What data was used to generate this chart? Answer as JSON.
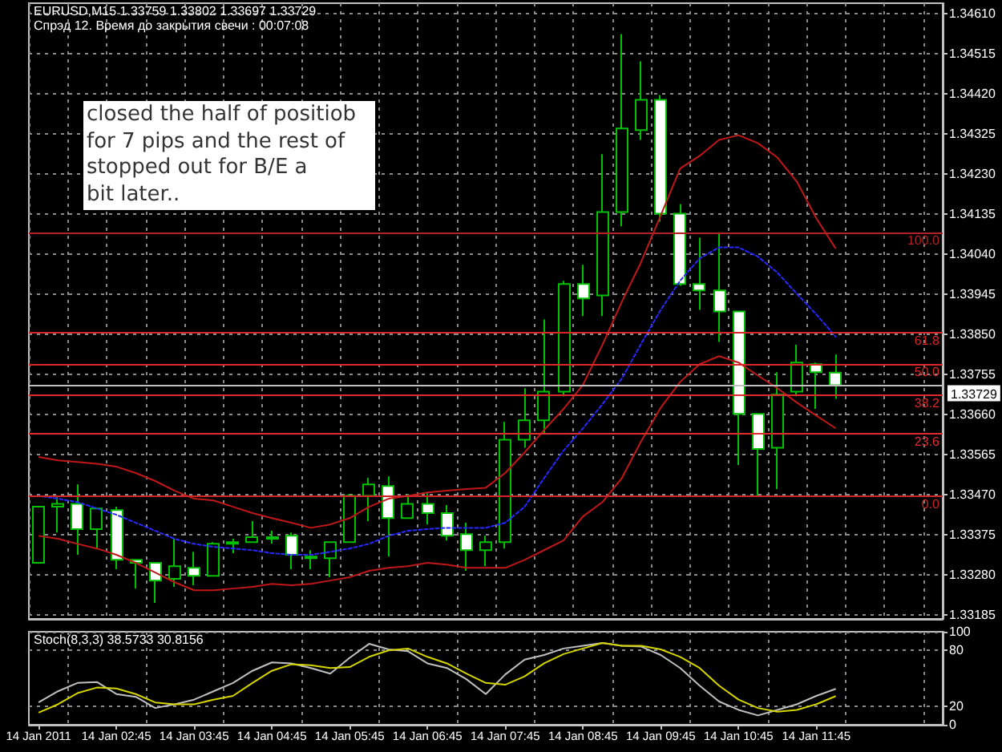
{
  "chart_data": [
    {
      "type": "candlestick",
      "title": "EURUSD,M15 1.33759 1.33802 1.33697 1.33729",
      "subtitle": "Спрэд 12. Время до закрытия свечи : 00:07:08",
      "categories": [
        null,
        null,
        null,
        null,
        null,
        null,
        null,
        null,
        null,
        null,
        null,
        null,
        null,
        null,
        null,
        null,
        null,
        null,
        null,
        null,
        null,
        null,
        null,
        null,
        null,
        null,
        null,
        null,
        null,
        null,
        null,
        null,
        null,
        null,
        null,
        null,
        null,
        null,
        null,
        null,
        null,
        null
      ],
      "ohlc": [
        [
          1.33308,
          1.33441,
          1.33308,
          1.33441
        ],
        [
          1.33441,
          1.33467,
          1.3338,
          1.33448
        ],
        [
          1.33448,
          1.33494,
          1.33327,
          1.33388
        ],
        [
          1.33388,
          1.33437,
          1.33342,
          1.33437
        ],
        [
          1.33433,
          1.33441,
          1.33293,
          1.33315
        ],
        [
          1.33315,
          1.33315,
          1.33247,
          1.33308
        ],
        [
          1.33308,
          1.33308,
          1.33213,
          1.33266
        ],
        [
          1.3327,
          1.33365,
          1.33251,
          1.333
        ],
        [
          1.33296,
          1.33334,
          1.33255,
          1.33277
        ],
        [
          1.33277,
          1.33357,
          1.33277,
          1.33353
        ],
        [
          1.33353,
          1.33365,
          1.33331,
          1.33357
        ],
        [
          1.33357,
          1.33407,
          1.33357,
          1.33369
        ],
        [
          1.33369,
          1.33384,
          1.33353,
          1.33365
        ],
        [
          1.33372,
          1.3338,
          1.33293,
          1.33327
        ],
        [
          1.33323,
          1.33338,
          1.33293,
          1.33319
        ],
        [
          1.33319,
          1.33357,
          1.33274,
          1.33357
        ],
        [
          1.33357,
          1.33471,
          1.33357,
          1.33467
        ],
        [
          1.33467,
          1.33509,
          1.33407,
          1.33494
        ],
        [
          1.3349,
          1.33513,
          1.33323,
          1.33414
        ],
        [
          1.33414,
          1.33471,
          1.33414,
          1.33448
        ],
        [
          1.33448,
          1.33475,
          1.33399,
          1.33426
        ],
        [
          1.33426,
          1.33445,
          1.33361,
          1.33372
        ],
        [
          1.33376,
          1.33403,
          1.33289,
          1.33338
        ],
        [
          1.33338,
          1.33372,
          1.333,
          1.33357
        ],
        [
          1.33357,
          1.33642,
          1.33342,
          1.336
        ],
        [
          1.336,
          1.33722,
          1.33581,
          1.33646
        ],
        [
          1.33646,
          1.33885,
          1.33616,
          1.33714
        ],
        [
          1.33714,
          1.33977,
          1.33703,
          1.33969
        ],
        [
          1.33969,
          1.34015,
          1.33893,
          1.33935
        ],
        [
          1.33942,
          1.34277,
          1.33893,
          1.3414
        ],
        [
          1.3414,
          1.34562,
          1.34106,
          1.34338
        ],
        [
          1.34334,
          1.34497,
          1.34311,
          1.34406
        ],
        [
          1.34406,
          1.34417,
          1.34117,
          1.34136
        ],
        [
          1.34136,
          1.34159,
          1.33965,
          1.33969
        ],
        [
          1.33969,
          1.34079,
          1.33908,
          1.33954
        ],
        [
          1.33954,
          1.34092,
          1.33832,
          1.33904
        ],
        [
          1.33904,
          1.33904,
          1.3354,
          1.33661
        ],
        [
          1.33661,
          1.33661,
          1.33466,
          1.33578
        ],
        [
          1.33581,
          1.3376,
          1.33483,
          1.33707
        ],
        [
          1.33714,
          1.33825,
          1.33703,
          1.33783
        ],
        [
          1.33779,
          1.33783,
          1.33673,
          1.3376
        ],
        [
          1.33759,
          1.33802,
          1.33697,
          1.33729
        ]
      ],
      "color": "#00c000",
      "colors": [
        "#000000",
        "#000000",
        "#ffffff",
        "#000000",
        "#ffffff",
        "#ffffff",
        "#ffffff",
        "#000000",
        "#ffffff",
        "#000000",
        "#000000",
        "#000000",
        "#ffffff",
        "#ffffff",
        "#ffffff",
        "#000000",
        "#000000",
        "#000000",
        "#ffffff",
        "#000000",
        "#ffffff",
        "#ffffff",
        "#ffffff",
        "#000000",
        "#000000",
        "#000000",
        "#000000",
        "#000000",
        "#ffffff",
        "#000000",
        "#000000",
        "#000000",
        "#ffffff",
        "#ffffff",
        "#ffffff",
        "#ffffff",
        "#ffffff",
        "#ffffff",
        "#000000",
        "#000000",
        "#ffffff",
        "#ffffff"
      ],
      "series": [
        {
          "type": "line",
          "color": "#c01818",
          "values": [
            1.33559,
            1.33551,
            1.33547,
            1.33543,
            1.33536,
            1.33521,
            1.33502,
            1.33479,
            1.3346,
            1.33456,
            1.33441,
            1.33426,
            1.33414,
            1.33403,
            1.33391,
            1.33399,
            1.33414,
            1.33441,
            1.3346,
            1.33467,
            1.33475,
            1.33479,
            1.33483,
            1.33486,
            1.33521,
            1.3357,
            1.33623,
            1.33673,
            1.3373,
            1.33825,
            1.33927,
            1.34022,
            1.34132,
            1.34243,
            1.34273,
            1.34311,
            1.34322,
            1.34303,
            1.34269,
            1.34212,
            1.34125,
            1.34053
          ]
        },
        {
          "type": "line",
          "color": "#2828ff",
          "line_style": "dotted",
          "values": [
            1.33467,
            1.3346,
            1.33452,
            1.33437,
            1.33422,
            1.33403,
            1.33384,
            1.33365,
            1.33353,
            1.33346,
            1.33342,
            1.33338,
            1.33331,
            1.33327,
            1.33327,
            1.33334,
            1.33342,
            1.33353,
            1.33372,
            1.33384,
            1.33388,
            1.33391,
            1.33391,
            1.33391,
            1.33403,
            1.33441,
            1.33509,
            1.33574,
            1.33627,
            1.33684,
            1.33745,
            1.33828,
            1.33908,
            1.33977,
            1.3403,
            1.34056,
            1.34056,
            1.34034,
            1.33996,
            1.33946,
            1.33897,
            1.33844
          ]
        },
        {
          "type": "line",
          "color": "#c01818",
          "values": [
            1.33372,
            1.33365,
            1.33353,
            1.33342,
            1.33327,
            1.33308,
            1.33285,
            1.33262,
            1.33243,
            1.33243,
            1.33247,
            1.33251,
            1.33258,
            1.33255,
            1.33258,
            1.33266,
            1.33274,
            1.33289,
            1.33296,
            1.333,
            1.33308,
            1.33304,
            1.33296,
            1.33296,
            1.33296,
            1.33315,
            1.33338,
            1.33361,
            1.33418,
            1.33452,
            1.33509,
            1.33597,
            1.33676,
            1.33737,
            1.33779,
            1.33798,
            1.33783,
            1.33752,
            1.33722,
            1.33688,
            1.33657,
            1.33627
          ]
        }
      ],
      "ylim": [
        1.33175,
        1.34635
      ],
      "yticks": [
        1.33185,
        {
          "value": 1.3328,
          "label": "1.33280"
        },
        1.33375,
        {
          "value": 1.3347,
          "label": "1.33470"
        },
        1.33565,
        {
          "value": 1.3366,
          "label": "1.33660"
        },
        1.33755,
        {
          "value": 1.3385,
          "label": "1.33850"
        },
        1.33945,
        {
          "value": 1.3404,
          "label": "1.34040"
        },
        1.34135,
        {
          "value": 1.3423,
          "label": "1.34230"
        },
        1.34325,
        {
          "value": 1.3442,
          "label": "1.34420"
        },
        1.34515,
        {
          "value": 1.3461,
          "label": "1.34610"
        }
      ],
      "ref_lines": [
        {
          "axis": "y",
          "value": 1.33729,
          "label": "1.33729",
          "color": "#c0c0c0"
        },
        {
          "axis": "y",
          "value": 1.34092,
          "color": "#b22222"
        },
        {
          "axis": "y",
          "value": 1.33853,
          "color": "#d42626"
        },
        {
          "axis": "y",
          "value": 1.33779,
          "color": "#d82828"
        },
        {
          "axis": "y",
          "value": 1.33705,
          "color": "#dc2a2a"
        },
        {
          "axis": "y",
          "value": 1.33614,
          "color": "#e02c2c"
        },
        {
          "axis": "y",
          "value": 1.33466,
          "color": "#d02424"
        }
      ],
      "annotations": [
        "closed the half of positiob\nfor 7 pips and the rest of\nstopped out for B/E a\nbit later..",
        {
          "text": "100.0",
          "y": 1.34092
        },
        {
          "text": "61.8",
          "y": 1.33853
        },
        {
          "text": "50.0",
          "y": 1.33779
        },
        {
          "text": "38.2",
          "y": 1.33705
        },
        {
          "text": "23.6",
          "y": 1.33614
        },
        {
          "text": "0.0",
          "y": 1.33466
        }
      ],
      "grid": true,
      "marker": "none",
      "tick_labels": "y"
    },
    {
      "type": "line",
      "title": "Stoch(8,3,3) 38.5733 30.8156",
      "categories": [
        "14 Jan 2011",
        null,
        null,
        null,
        "14 Jan 02:45",
        null,
        null,
        null,
        "14 Jan 03:45",
        null,
        null,
        null,
        "14 Jan 04:45",
        null,
        null,
        null,
        "14 Jan 05:45",
        null,
        null,
        null,
        "14 Jan 06:45",
        null,
        null,
        null,
        "14 Jan 07:45",
        null,
        null,
        null,
        "14 Jan 08:45",
        null,
        null,
        null,
        "14 Jan 09:45",
        null,
        null,
        null,
        "14 Jan 10:45",
        null,
        null,
        null,
        "14 Jan 11:45",
        null
      ],
      "series": [
        {
          "color": "#c0c0c0",
          "values": [
            24,
            36,
            45,
            46,
            33,
            30,
            18,
            22,
            27,
            36,
            45,
            58,
            67,
            66,
            61,
            55,
            72,
            87,
            81,
            79,
            66,
            61,
            49,
            33,
            54,
            70,
            75,
            82,
            85,
            88,
            85,
            84,
            75,
            61,
            42,
            25,
            16,
            10,
            16,
            22,
            31,
            38.5733
          ]
        },
        {
          "color": "#d4d400",
          "values": [
            13,
            22,
            34,
            40,
            39,
            33,
            24,
            22,
            22,
            27,
            31,
            45,
            58,
            65,
            64,
            61,
            62,
            73,
            80,
            82,
            73,
            66,
            55,
            45,
            43,
            52,
            66,
            76,
            82,
            88,
            85,
            85,
            81,
            73,
            61,
            42,
            27,
            18,
            14,
            16,
            22,
            30.8156
          ]
        }
      ],
      "ylim": [
        0,
        100
      ],
      "yticks": [
        0,
        20,
        80,
        100
      ],
      "grid": true,
      "marker": "none"
    }
  ]
}
